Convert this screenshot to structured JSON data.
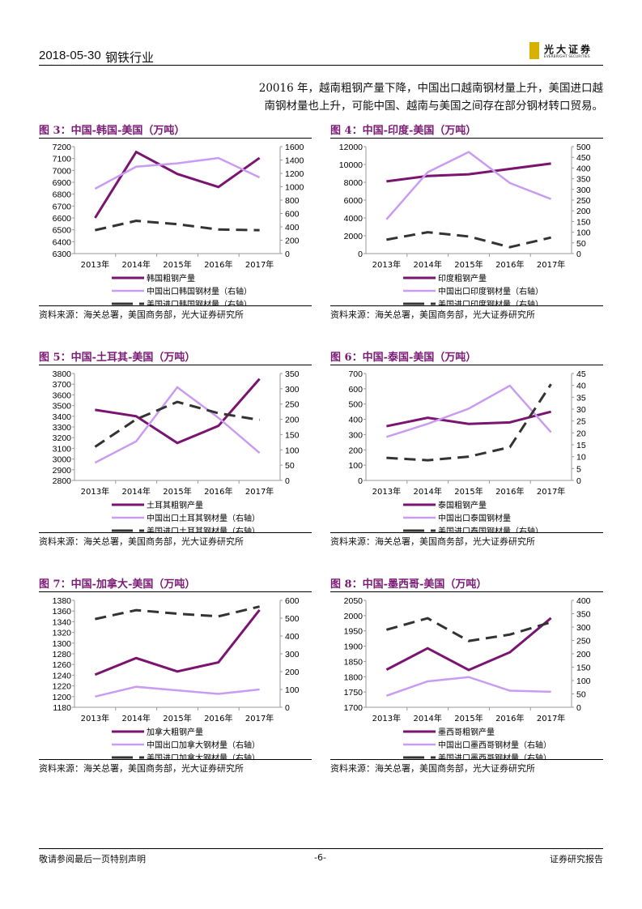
{
  "header": {
    "date": "2018-05-30",
    "sector": "钢铁行业",
    "logo_cn": "光大证券",
    "logo_en": "EVERBRIGHT SECURITIES"
  },
  "body_text": [
    "20016 年，越南粗钢产量下降，中国出口越南钢材量上升，美国进口越",
    "南钢材量也上升，可能中国、越南与美国之间存在部分钢材转口贸易。"
  ],
  "colors": {
    "title": "#7b1a76",
    "crude_steel": "#7a1470",
    "china_export": "#c99cf2",
    "us_import": "#333333"
  },
  "chart_data": [
    {
      "type": "line",
      "title": "图 3：中国-韩国-美国（万吨）",
      "categories": [
        "2013年",
        "2014年",
        "2015年",
        "2016年",
        "2017年"
      ],
      "ylim_left": [
        6300,
        7200
      ],
      "yticks_left": [
        6300,
        6400,
        6500,
        6600,
        6700,
        6800,
        6900,
        7000,
        7100,
        7200
      ],
      "ylim_right": [
        0,
        1600
      ],
      "yticks_right": [
        0,
        200,
        400,
        600,
        800,
        1000,
        1200,
        1400,
        1600
      ],
      "series": [
        {
          "name": "韩国粗钢产量",
          "axis": "left",
          "style": "crude",
          "values": [
            6600,
            7155,
            6970,
            6860,
            7105
          ]
        },
        {
          "name": "中国出口韩国钢材量（右轴）",
          "axis": "right",
          "style": "export",
          "values": [
            970,
            1300,
            1350,
            1430,
            1140
          ]
        },
        {
          "name": "美国进口韩国钢材量（右轴）",
          "axis": "right",
          "style": "import",
          "values": [
            350,
            490,
            440,
            360,
            350
          ]
        }
      ],
      "source": "资料来源：海关总署，美国商务部，光大证券研究所"
    },
    {
      "type": "line",
      "title": "图 4：中国-印度-美国（万吨）",
      "categories": [
        "2013年",
        "2014年",
        "2015年",
        "2016年",
        "2017年"
      ],
      "ylim_left": [
        0,
        12000
      ],
      "yticks_left": [
        0,
        2000,
        4000,
        6000,
        8000,
        10000,
        12000
      ],
      "ylim_right": [
        0,
        500
      ],
      "yticks_right": [
        0,
        50,
        100,
        150,
        200,
        250,
        300,
        350,
        400,
        450,
        500
      ],
      "series": [
        {
          "name": "印度粗钢产量",
          "axis": "left",
          "style": "crude",
          "values": [
            8100,
            8700,
            8900,
            9500,
            10100
          ]
        },
        {
          "name": "中国出口印度钢材量（右轴）",
          "axis": "right",
          "style": "export",
          "values": [
            160,
            380,
            475,
            330,
            255
          ]
        },
        {
          "name": "美国进口印度钢材量（右轴）",
          "axis": "right",
          "style": "import",
          "values": [
            65,
            100,
            80,
            30,
            75
          ]
        }
      ],
      "source": "资料来源：海关总署，美国商务部，光大证券研究所"
    },
    {
      "type": "line",
      "title": "图 5：中国-土耳其-美国（万吨）",
      "categories": [
        "2013年",
        "2014年",
        "2015年",
        "2016年",
        "2017年"
      ],
      "ylim_left": [
        2800,
        3800
      ],
      "yticks_left": [
        2800,
        2900,
        3000,
        3100,
        3200,
        3300,
        3400,
        3500,
        3600,
        3700,
        3800
      ],
      "ylim_right": [
        0,
        350
      ],
      "yticks_right": [
        0,
        50,
        100,
        150,
        200,
        250,
        300,
        350
      ],
      "series": [
        {
          "name": "土耳其粗钢产量",
          "axis": "left",
          "style": "crude",
          "values": [
            3460,
            3400,
            3150,
            3310,
            3750
          ]
        },
        {
          "name": "中国出口土耳其钢材量（右轴）",
          "axis": "right",
          "style": "export",
          "values": [
            58,
            128,
            305,
            205,
            90
          ]
        },
        {
          "name": "美国进口土耳其钢材量（右轴）",
          "axis": "right",
          "style": "import",
          "values": [
            110,
            200,
            257,
            220,
            198
          ]
        }
      ],
      "source": "资料来源：海关总署，美国商务部，光大证券研究所"
    },
    {
      "type": "line",
      "title": "图 6：中国-泰国-美国（万吨）",
      "categories": [
        "2013年",
        "2014年",
        "2015年",
        "2016年",
        "2017年"
      ],
      "ylim_left": [
        0,
        700
      ],
      "yticks_left": [
        0,
        100,
        200,
        300,
        400,
        500,
        600,
        700
      ],
      "ylim_right": [
        0,
        45
      ],
      "yticks_right": [
        0,
        5,
        10,
        15,
        20,
        25,
        30,
        35,
        40,
        45
      ],
      "series": [
        {
          "name": "泰国粗钢产量",
          "axis": "left",
          "style": "crude",
          "values": [
            355,
            410,
            370,
            380,
            450
          ]
        },
        {
          "name": "中国出口泰国钢材量",
          "axis": "left",
          "style": "export",
          "values": [
            285,
            370,
            470,
            620,
            315
          ]
        },
        {
          "name": "美国进口泰国钢材量（右轴）",
          "axis": "right",
          "style": "import",
          "values": [
            9.5,
            8.5,
            10,
            14,
            40.5
          ]
        }
      ],
      "source": "资料来源：海关总署，美国商务部，光大证券研究所"
    },
    {
      "type": "line",
      "title": "图 7：中国-加拿大-美国（万吨）",
      "categories": [
        "2013年",
        "2014年",
        "2015年",
        "2016年",
        "2017年"
      ],
      "ylim_left": [
        1180,
        1380
      ],
      "yticks_left": [
        1180,
        1200,
        1220,
        1240,
        1260,
        1280,
        1300,
        1320,
        1340,
        1360,
        1380
      ],
      "ylim_right": [
        0,
        600
      ],
      "yticks_right": [
        0,
        100,
        200,
        300,
        400,
        500,
        600
      ],
      "series": [
        {
          "name": "加拿大粗钢产量",
          "axis": "left",
          "style": "crude",
          "values": [
            1241,
            1272,
            1247,
            1264,
            1362
          ]
        },
        {
          "name": "中国出口加拿大钢材量（右轴）",
          "axis": "right",
          "style": "export",
          "values": [
            60,
            115,
            95,
            75,
            100
          ]
        },
        {
          "name": "美国进口加拿大钢材量（右轴）",
          "axis": "right",
          "style": "import",
          "values": [
            495,
            545,
            525,
            510,
            565
          ]
        }
      ],
      "source": "资料来源：海关总署，美国商务部，光大证券研究所"
    },
    {
      "type": "line",
      "title": "图 8：中国-墨西哥-美国（万吨）",
      "categories": [
        "2013年",
        "2014年",
        "2015年",
        "2016年",
        "2017年"
      ],
      "ylim_left": [
        1700,
        2050
      ],
      "yticks_left": [
        1700,
        1750,
        1800,
        1850,
        1900,
        1950,
        2000,
        2050
      ],
      "ylim_right": [
        0,
        400
      ],
      "yticks_right": [
        0,
        50,
        100,
        150,
        200,
        250,
        300,
        350,
        400
      ],
      "series": [
        {
          "name": "墨西哥粗钢产量",
          "axis": "left",
          "style": "crude",
          "values": [
            1823,
            1893,
            1822,
            1880,
            1992
          ]
        },
        {
          "name": "中国出口墨西哥钢材量（右轴）",
          "axis": "right",
          "style": "export",
          "values": [
            43,
            97,
            113,
            62,
            58
          ]
        },
        {
          "name": "美国进口墨西哥钢材量（右轴）",
          "axis": "right",
          "style": "import",
          "values": [
            290,
            333,
            248,
            272,
            318
          ]
        }
      ],
      "source": "资料来源：海关总署，美国商务部，光大证券研究所"
    }
  ],
  "footer": {
    "disclaimer": "敬请参阅最后一页特别声明",
    "page": "-6-",
    "report_type": "证券研究报告"
  }
}
